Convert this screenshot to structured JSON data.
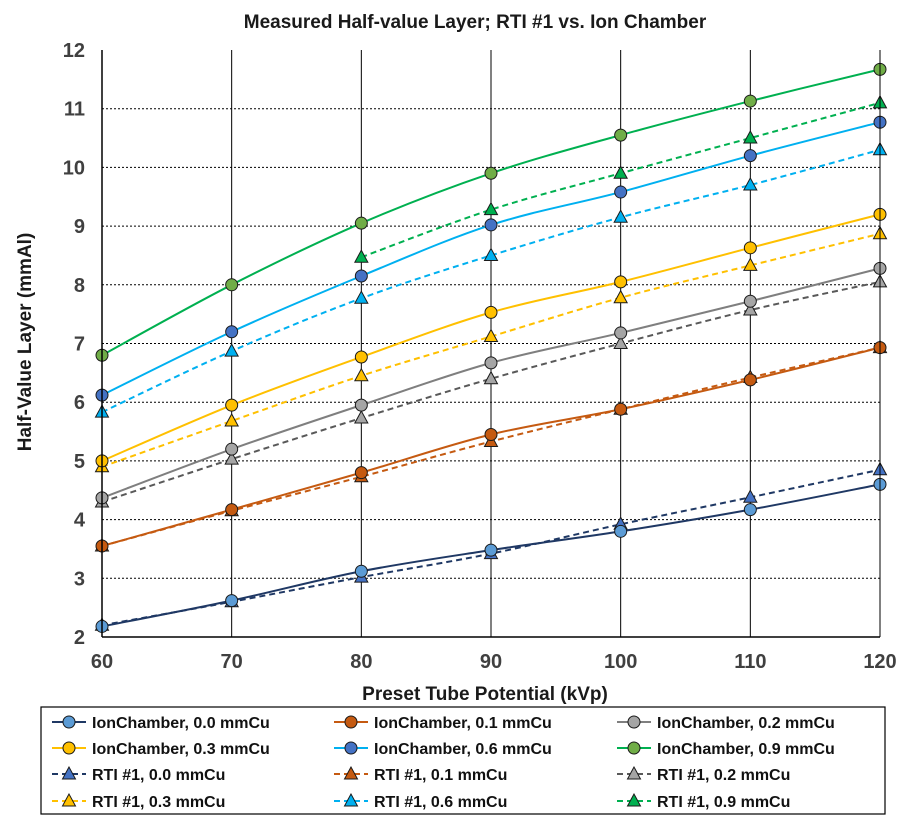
{
  "chart_data": {
    "type": "line",
    "title": "Measured Half-value Layer; RTI #1 vs. Ion Chamber",
    "xlabel": "Preset Tube Potential (kVp)",
    "ylabel": "Half-Value Layer (mmAl)",
    "xlim": [
      60,
      120
    ],
    "ylim": [
      2,
      12
    ],
    "x_ticks": [
      "60",
      "70",
      "80",
      "90",
      "100",
      "110",
      "120"
    ],
    "y_ticks": [
      "2",
      "3",
      "4",
      "5",
      "6",
      "7",
      "8",
      "9",
      "10",
      "11",
      "12"
    ],
    "grid": true,
    "legend_position": "bottom",
    "series": [
      {
        "name": "IonChamber, 0.0 mmCu",
        "color": "#1f3864",
        "marker": "circle",
        "marker_fill": "#5b9bd5",
        "dash": false,
        "x": [
          60,
          70,
          80,
          90,
          100,
          110,
          120
        ],
        "values": [
          2.18,
          2.62,
          3.12,
          3.48,
          3.8,
          4.17,
          4.6
        ]
      },
      {
        "name": "IonChamber, 0.1 mmCu",
        "color": "#c55a11",
        "marker": "circle",
        "marker_fill": "#c55a11",
        "dash": false,
        "x": [
          60,
          70,
          80,
          90,
          100,
          110,
          120
        ],
        "values": [
          3.55,
          4.17,
          4.8,
          5.45,
          5.88,
          6.38,
          6.93
        ]
      },
      {
        "name": "IonChamber, 0.2 mmCu",
        "color": "#7f7f7f",
        "marker": "circle",
        "marker_fill": "#a5a5a5",
        "dash": false,
        "x": [
          60,
          70,
          80,
          90,
          100,
          110,
          120
        ],
        "values": [
          4.37,
          5.2,
          5.95,
          6.67,
          7.18,
          7.72,
          8.28
        ]
      },
      {
        "name": "IonChamber, 0.3 mmCu",
        "color": "#ffc000",
        "marker": "circle",
        "marker_fill": "#ffc000",
        "dash": false,
        "x": [
          60,
          70,
          80,
          90,
          100,
          110,
          120
        ],
        "values": [
          5.0,
          5.95,
          6.77,
          7.53,
          8.05,
          8.63,
          9.2
        ]
      },
      {
        "name": "IonChamber, 0.6 mmCu",
        "color": "#00b0f0",
        "marker": "circle",
        "marker_fill": "#4472c4",
        "dash": false,
        "x": [
          60,
          70,
          80,
          90,
          100,
          110,
          120
        ],
        "values": [
          6.12,
          7.2,
          8.15,
          9.02,
          9.58,
          10.2,
          10.77
        ]
      },
      {
        "name": "IonChamber, 0.9 mmCu",
        "color": "#00b050",
        "marker": "circle",
        "marker_fill": "#70ad47",
        "dash": false,
        "x": [
          60,
          70,
          80,
          90,
          100,
          110,
          120
        ],
        "values": [
          6.8,
          8.0,
          9.05,
          9.9,
          10.55,
          11.13,
          11.67
        ]
      },
      {
        "name": "RTI #1, 0.0 mmCu",
        "color": "#1f3864",
        "marker": "triangle",
        "marker_fill": "#4472c4",
        "dash": true,
        "x": [
          60,
          70,
          80,
          90,
          100,
          110,
          120
        ],
        "values": [
          2.2,
          2.6,
          3.02,
          3.42,
          3.92,
          4.38,
          4.85
        ]
      },
      {
        "name": "RTI #1, 0.1 mmCu",
        "color": "#c55a11",
        "marker": "triangle",
        "marker_fill": "#c55a11",
        "dash": true,
        "x": [
          60,
          70,
          80,
          90,
          100,
          110,
          120
        ],
        "values": [
          3.55,
          4.15,
          4.73,
          5.33,
          5.88,
          6.42,
          6.93
        ]
      },
      {
        "name": "RTI #1, 0.2 mmCu",
        "color": "#595959",
        "marker": "triangle",
        "marker_fill": "#a5a5a5",
        "dash": true,
        "x": [
          60,
          70,
          80,
          90,
          100,
          110,
          120
        ],
        "values": [
          4.3,
          5.03,
          5.73,
          6.4,
          7.0,
          7.57,
          8.05
        ]
      },
      {
        "name": "RTI #1, 0.3 mmCu",
        "color": "#ffc000",
        "marker": "triangle",
        "marker_fill": "#ffc000",
        "dash": true,
        "x": [
          60,
          70,
          80,
          90,
          100,
          110,
          120
        ],
        "values": [
          4.9,
          5.68,
          6.45,
          7.12,
          7.78,
          8.33,
          8.87
        ]
      },
      {
        "name": "RTI #1, 0.6 mmCu",
        "color": "#00b0f0",
        "marker": "triangle",
        "marker_fill": "#00b0f0",
        "dash": true,
        "x": [
          60,
          70,
          80,
          90,
          100,
          110,
          120
        ],
        "values": [
          5.83,
          6.87,
          7.77,
          8.5,
          9.15,
          9.7,
          10.3
        ]
      },
      {
        "name": "RTI #1, 0.9 mmCu",
        "color": "#00b050",
        "marker": "triangle",
        "marker_fill": "#00b050",
        "dash": true,
        "x": [
          80,
          90,
          100,
          110,
          120
        ],
        "values": [
          8.47,
          9.28,
          9.9,
          10.5,
          11.1
        ]
      }
    ]
  }
}
